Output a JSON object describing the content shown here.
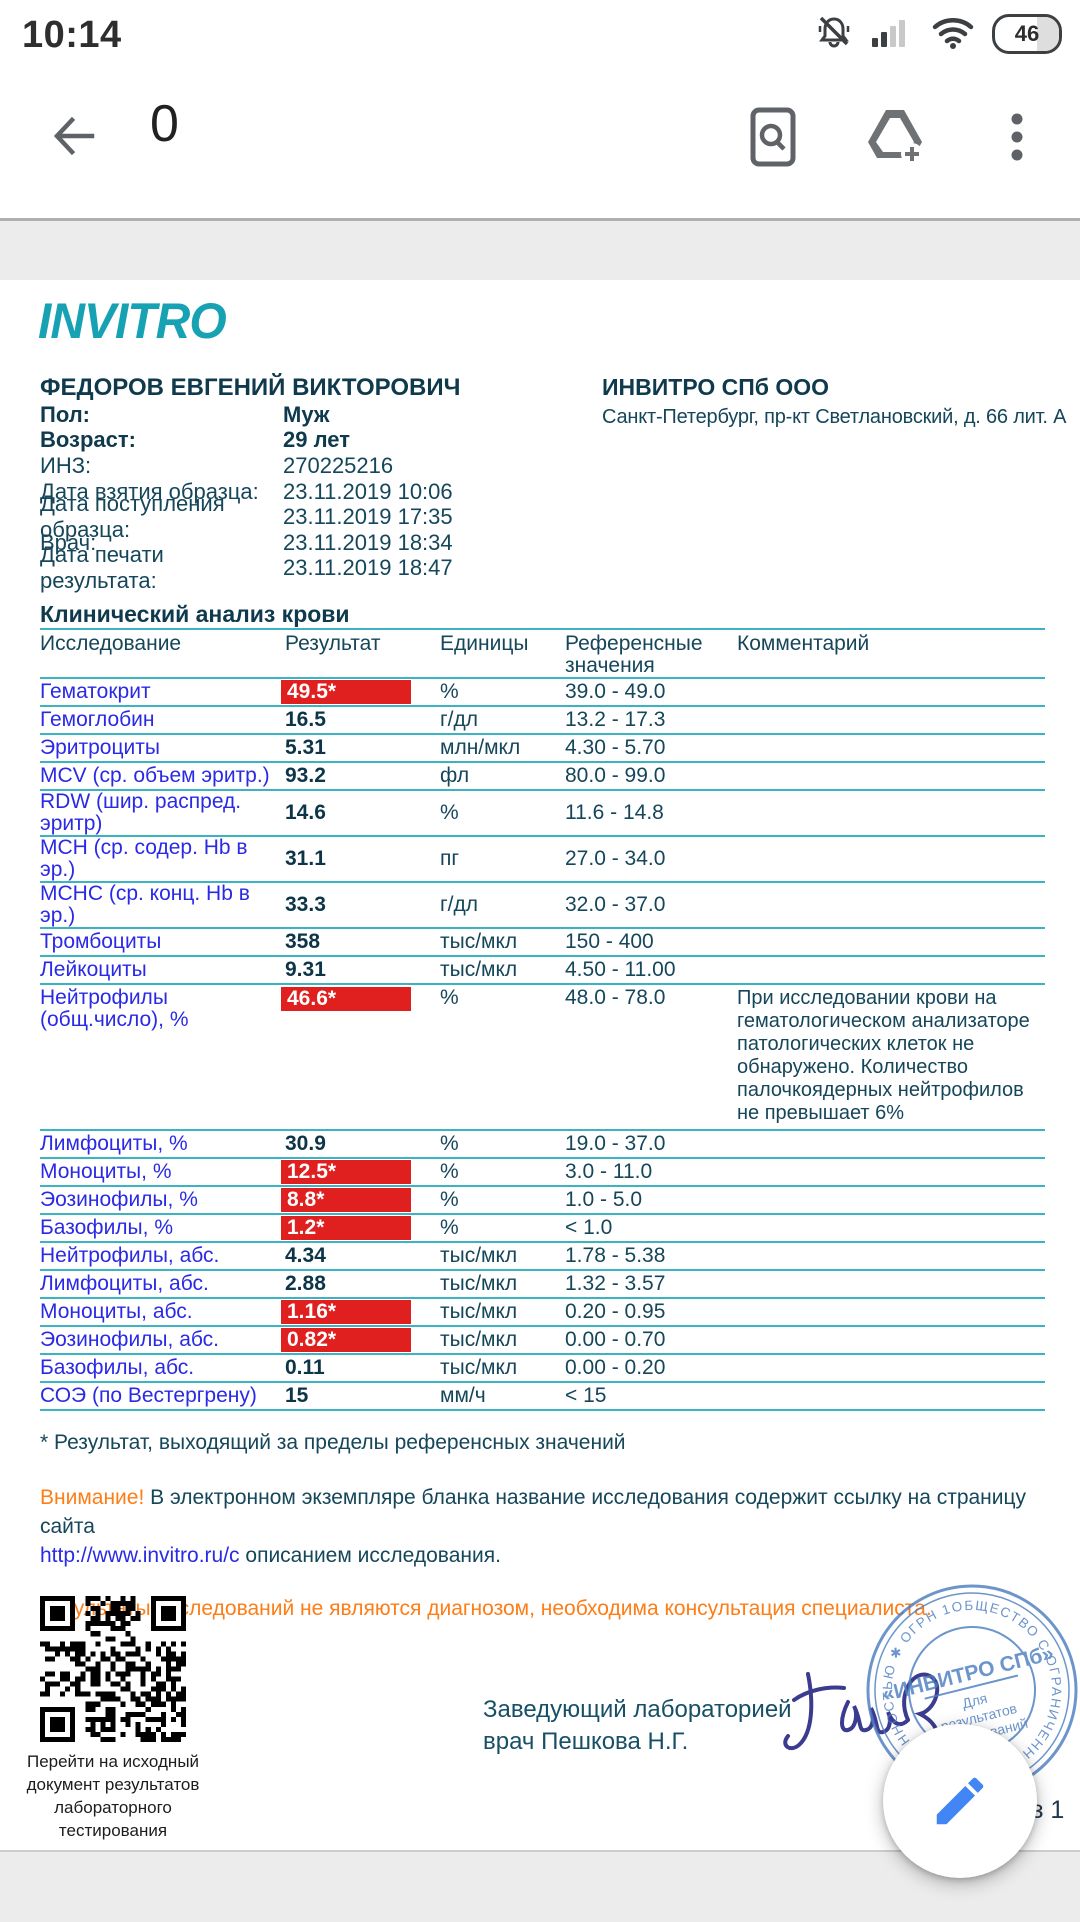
{
  "status_bar": {
    "time": "10:14",
    "battery_percent": "46"
  },
  "toolbar": {
    "title": "0"
  },
  "colors": {
    "brand_teal": "#17a2b3",
    "table_line": "#3bb3c3",
    "flag_red": "#e01f1f",
    "text_navy": "#15465a",
    "link_blue": "#2a2ae6",
    "warn_orange": "#fd7d17",
    "fab_pencil_blue": "#4285f4",
    "stamp_blue": "#4d7ec2"
  },
  "document": {
    "logo": "INVITRO",
    "patient_name": "ФЕДОРОВ ЕВГЕНИЙ ВИКТОРОВИЧ",
    "org_name": "ИНВИТРО СПб ООО",
    "org_address": "Санкт-Петербург, пр-кт Светлановский, д. 66 лит. А",
    "info_rows": [
      {
        "label": "Пол:",
        "value": "Муж",
        "bold": true
      },
      {
        "label": "Возраст:",
        "value": "29 лет",
        "bold": true
      },
      {
        "label": "ИНЗ:",
        "value": "270225216",
        "bold": false
      },
      {
        "label": "Дата взятия образца:",
        "value": "23.11.2019 10:06",
        "bold": false
      },
      {
        "label": "Дата поступления образца:",
        "value": "23.11.2019 17:35",
        "bold": false
      },
      {
        "label": "Врач:",
        "value": "23.11.2019 18:34",
        "bold": false
      },
      {
        "label": "Дата печати результата:",
        "value": "23.11.2019 18:47",
        "bold": false
      }
    ],
    "section_title": "Клинический анализ крови",
    "table": {
      "headers": [
        "Исследование",
        "Результат",
        "Единицы",
        "Референсные значения",
        "Комментарий"
      ],
      "rows": [
        {
          "name": "Гематокрит",
          "result": "49.5*",
          "flag": true,
          "units": "%",
          "ref": "39.0 - 49.0",
          "comment": ""
        },
        {
          "name": "Гемоглобин",
          "result": "16.5",
          "flag": false,
          "units": "г/дл",
          "ref": "13.2 - 17.3",
          "comment": ""
        },
        {
          "name": "Эритроциты",
          "result": "5.31",
          "flag": false,
          "units": "млн/мкл",
          "ref": "4.30 - 5.70",
          "comment": ""
        },
        {
          "name": "MCV (ср. объем эритр.)",
          "result": "93.2",
          "flag": false,
          "units": "фл",
          "ref": "80.0 - 99.0",
          "comment": ""
        },
        {
          "name": "RDW (шир. распред. эритр)",
          "result": "14.6",
          "flag": false,
          "units": "%",
          "ref": "11.6 - 14.8",
          "comment": ""
        },
        {
          "name": "MCH (ср. содер. Hb в эр.)",
          "result": "31.1",
          "flag": false,
          "units": "пг",
          "ref": "27.0 - 34.0",
          "comment": ""
        },
        {
          "name": "MCHC (ср. конц. Hb в эр.)",
          "result": "33.3",
          "flag": false,
          "units": "г/дл",
          "ref": "32.0 - 37.0",
          "comment": ""
        },
        {
          "name": "Тромбоциты",
          "result": "358",
          "flag": false,
          "units": "тыс/мкл",
          "ref": "150 - 400",
          "comment": ""
        },
        {
          "name": "Лейкоциты",
          "result": "9.31",
          "flag": false,
          "units": "тыс/мкл",
          "ref": "4.50 - 11.00",
          "comment": ""
        },
        {
          "name": "Нейтрофилы (общ.число), %",
          "result": "46.6*",
          "flag": true,
          "units": "%",
          "ref": "48.0 - 78.0",
          "comment": "При исследовании крови на гематологическом анализаторе патологических клеток не обнаружено. Количество палочкоядерных нейтрофилов не превышает 6%"
        },
        {
          "name": "Лимфоциты, %",
          "result": "30.9",
          "flag": false,
          "units": "%",
          "ref": "19.0 - 37.0",
          "comment": ""
        },
        {
          "name": "Моноциты, %",
          "result": "12.5*",
          "flag": true,
          "units": "%",
          "ref": "3.0 - 11.0",
          "comment": ""
        },
        {
          "name": "Эозинофилы, %",
          "result": "8.8*",
          "flag": true,
          "units": "%",
          "ref": "1.0 - 5.0",
          "comment": ""
        },
        {
          "name": "Базофилы, %",
          "result": "1.2*",
          "flag": true,
          "units": "%",
          "ref": "< 1.0",
          "comment": ""
        },
        {
          "name": "Нейтрофилы, абс.",
          "result": "4.34",
          "flag": false,
          "units": "тыс/мкл",
          "ref": "1.78 - 5.38",
          "comment": ""
        },
        {
          "name": "Лимфоциты, абс.",
          "result": "2.88",
          "flag": false,
          "units": "тыс/мкл",
          "ref": "1.32 - 3.57",
          "comment": ""
        },
        {
          "name": "Моноциты, абс.",
          "result": "1.16*",
          "flag": true,
          "units": "тыс/мкл",
          "ref": "0.20 - 0.95",
          "comment": ""
        },
        {
          "name": "Эозинофилы, абс.",
          "result": "0.82*",
          "flag": true,
          "units": "тыс/мкл",
          "ref": "0.00 - 0.70",
          "comment": ""
        },
        {
          "name": "Базофилы, абс.",
          "result": "0.11",
          "flag": false,
          "units": "тыс/мкл",
          "ref": "0.00 - 0.20",
          "comment": ""
        },
        {
          "name": "СОЭ (по Вестергрену)",
          "result": "15",
          "flag": false,
          "units": "мм/ч",
          "ref": "< 15",
          "comment": ""
        }
      ]
    },
    "footnote": "* Результат, выходящий за пределы референсных значений",
    "notice": {
      "warn": "Внимание!",
      "line1": " В электронном экземпляре бланка название исследования содержит ссылку на страницу сайта",
      "link": "http://www.invitro.ru/с",
      "line2": " описанием исследования."
    },
    "disclaimer": "Результаты исследований не являются диагнозом, необходима консультация специалиста.",
    "qr_caption": [
      "Перейти на исходный",
      "документ результатов",
      "лабораторного тестирования"
    ],
    "sign_title": [
      "Заведующий лабораторией",
      "врач Пешкова Н.Г."
    ],
    "stamp": {
      "ring_text": "ОБЩЕСТВО С ОГРАНИЧЕННОЙ ОТВЕТСТВЕННОСТЬЮ ✱ ОГРН 1057813259371 ✱ САНКТ-ПЕТЕРБУРГ ✱",
      "center_title": "«ИНВИТРО СПб»",
      "center_lines": [
        "Для",
        "результатов",
        "исследований"
      ]
    },
    "page_label": "з 1"
  }
}
